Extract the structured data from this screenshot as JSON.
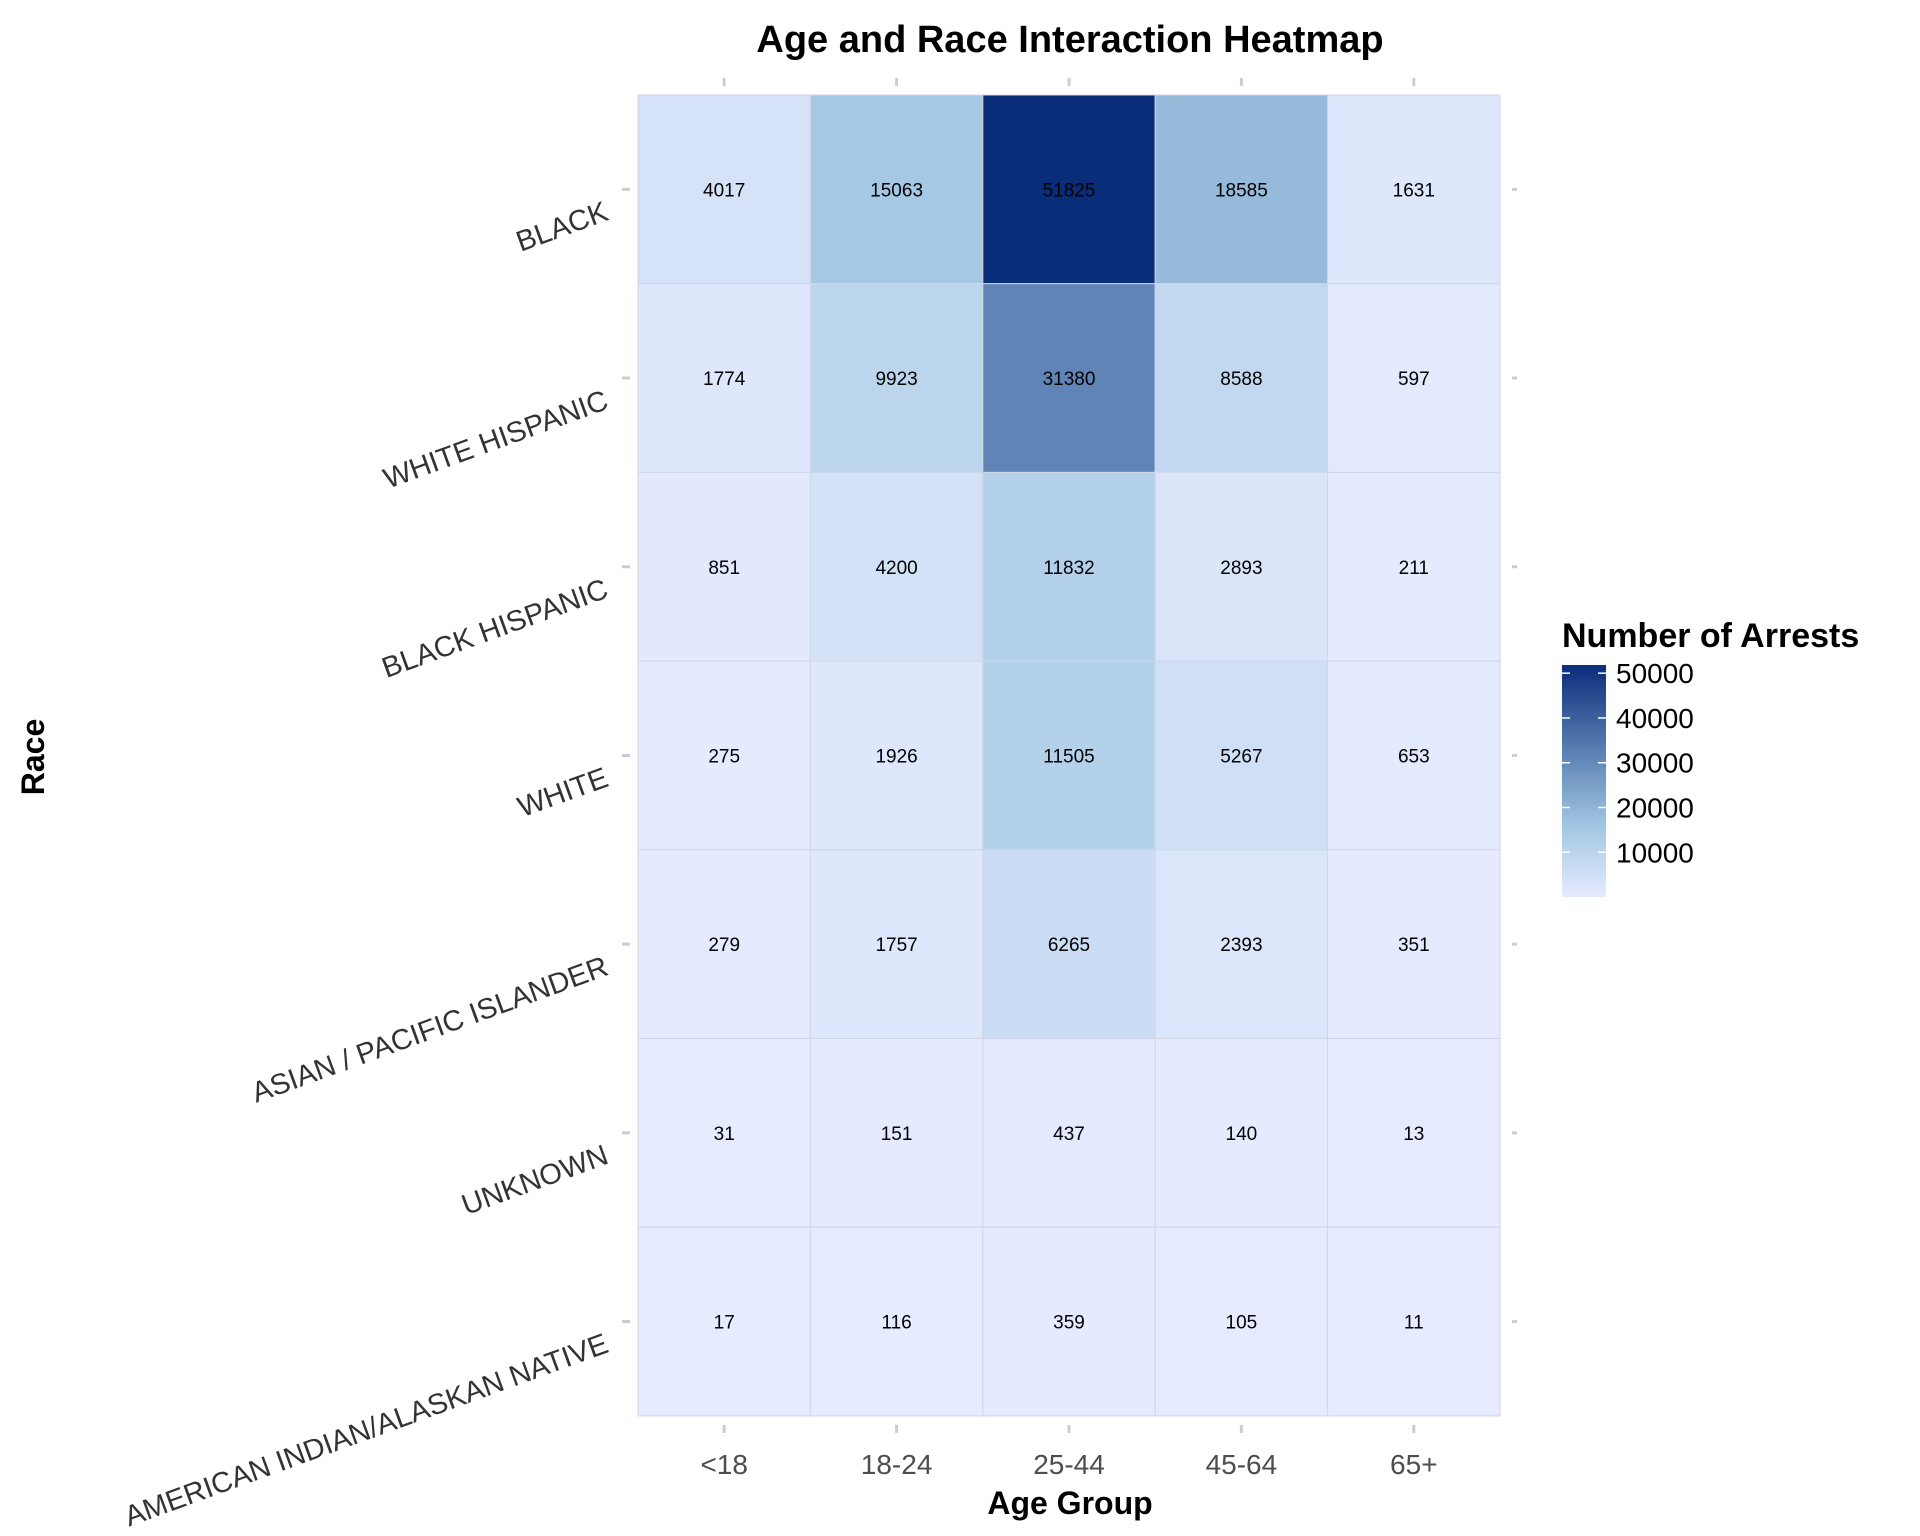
{
  "chart_data": {
    "type": "heatmap",
    "title": "Age and Race Interaction Heatmap",
    "xlabel": "Age Group",
    "ylabel": "Race",
    "x_categories": [
      "<18",
      "18-24",
      "25-44",
      "45-64",
      "65+"
    ],
    "y_categories": [
      "BLACK",
      "WHITE HISPANIC",
      "BLACK HISPANIC",
      "WHITE",
      "ASIAN / PACIFIC ISLANDER",
      "UNKNOWN",
      "AMERICAN INDIAN/ALASKAN NATIVE"
    ],
    "values": [
      [
        4017,
        15063,
        51825,
        18585,
        1631
      ],
      [
        1774,
        9923,
        31380,
        8588,
        597
      ],
      [
        851,
        4200,
        11832,
        2893,
        211
      ],
      [
        275,
        1926,
        11505,
        5267,
        653
      ],
      [
        279,
        1757,
        6265,
        2393,
        351
      ],
      [
        31,
        151,
        437,
        140,
        13
      ],
      [
        17,
        116,
        359,
        105,
        11
      ]
    ],
    "legend": {
      "title": "Number of Arrests",
      "ticks": [
        10000,
        20000,
        30000,
        40000,
        50000
      ],
      "range": [
        11,
        51825
      ],
      "placement": "right"
    },
    "color_scale": {
      "low": "#e6ebff",
      "mid": "#a3c8e3",
      "high": "#0a2d7a"
    },
    "grid": false
  }
}
